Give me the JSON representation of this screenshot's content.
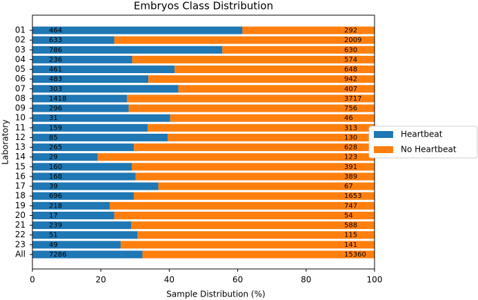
{
  "chart_data": {
    "type": "bar",
    "orientation": "horizontal",
    "stacked": "percent",
    "title": "Embryos Class Distribution",
    "xlabel": "Sample Distribution (%)",
    "ylabel": "Laboratory",
    "categories": [
      "01",
      "02",
      "03",
      "04",
      "05",
      "06",
      "07",
      "08",
      "09",
      "10",
      "11",
      "12",
      "13",
      "14",
      "15",
      "16",
      "17",
      "18",
      "19",
      "20",
      "21",
      "22",
      "23",
      "All"
    ],
    "series": [
      {
        "name": "Heartbeat",
        "color": "#1f77b4",
        "values": [
          464,
          633,
          786,
          236,
          461,
          483,
          303,
          1418,
          296,
          31,
          159,
          85,
          265,
          29,
          160,
          168,
          39,
          696,
          218,
          17,
          239,
          51,
          49,
          7286
        ]
      },
      {
        "name": "No Heartbeat",
        "color": "#ff7f0e",
        "values": [
          292,
          2009,
          630,
          574,
          648,
          942,
          407,
          3717,
          756,
          46,
          313,
          130,
          628,
          123,
          391,
          389,
          67,
          1653,
          747,
          54,
          588,
          115,
          141,
          15360
        ]
      }
    ],
    "xlim": [
      0,
      100
    ],
    "xticks": [
      0,
      20,
      40,
      60,
      80,
      100
    ],
    "legend": "right"
  }
}
